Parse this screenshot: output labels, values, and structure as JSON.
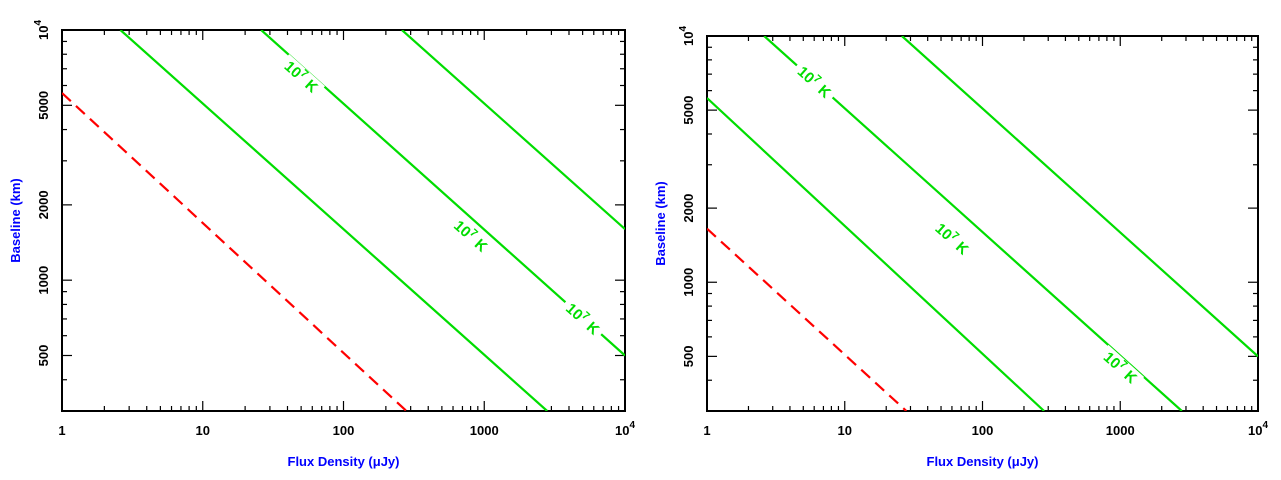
{
  "colors": {
    "axis_title": "#0000ff",
    "contour": "#00dd00",
    "limit": "#ff0000",
    "frame": "#000000"
  },
  "chart_data": [
    {
      "type": "line",
      "title": "",
      "xlabel": "Flux Density (μJy)",
      "ylabel": "Baseline (km)",
      "x_scale": "log",
      "y_scale": "log",
      "xlim": [
        1,
        10000
      ],
      "ylim": [
        300,
        10000
      ],
      "x_ticks": [
        {
          "value": 1,
          "base": "1",
          "exp": ""
        },
        {
          "value": 10,
          "base": "10",
          "exp": ""
        },
        {
          "value": 100,
          "base": "100",
          "exp": ""
        },
        {
          "value": 1000,
          "base": "1000",
          "exp": ""
        },
        {
          "value": 10000,
          "base": "10",
          "exp": "4"
        }
      ],
      "y_ticks": [
        {
          "value": 500,
          "base": "500",
          "exp": ""
        },
        {
          "value": 1000,
          "base": "1000",
          "exp": ""
        },
        {
          "value": 2000,
          "base": "2000",
          "exp": ""
        },
        {
          "value": 5000,
          "base": "5000",
          "exp": ""
        },
        {
          "value": 10000,
          "base": "10",
          "exp": "4"
        }
      ],
      "series": [
        {
          "style": "solid",
          "color": "#00dd00",
          "points": [
            [
              2.6,
              10000
            ],
            [
              2800,
              300
            ]
          ]
        },
        {
          "style": "solid",
          "color": "#00dd00",
          "points": [
            [
              26,
              10000
            ],
            [
              10000,
              500
            ]
          ]
        },
        {
          "style": "solid",
          "color": "#00dd00",
          "points": [
            [
              260,
              10000
            ],
            [
              10000,
              1600
            ]
          ]
        },
        {
          "style": "dashed",
          "color": "#ff0000",
          "points": [
            [
              1,
              5600
            ],
            [
              280,
              300
            ]
          ]
        }
      ],
      "annotations": [
        {
          "text_base": "10",
          "text_exp": "7",
          "text_unit": "K",
          "x": 50,
          "y": 6500,
          "series": 1
        },
        {
          "text_base": "10",
          "text_exp": "7",
          "text_unit": "K",
          "x": 800,
          "y": 1500,
          "series": 1
        },
        {
          "text_base": "10",
          "text_exp": "7",
          "text_unit": "K",
          "x": 5000,
          "y": 700,
          "series": 1
        }
      ]
    },
    {
      "type": "line",
      "title": "",
      "xlabel": "Flux Density (μJy)",
      "ylabel": "Baseline (km)",
      "x_scale": "log",
      "y_scale": "log",
      "xlim": [
        1,
        10000
      ],
      "ylim": [
        300,
        10000
      ],
      "x_ticks": [
        {
          "value": 1,
          "base": "1",
          "exp": ""
        },
        {
          "value": 10,
          "base": "10",
          "exp": ""
        },
        {
          "value": 100,
          "base": "100",
          "exp": ""
        },
        {
          "value": 1000,
          "base": "1000",
          "exp": ""
        },
        {
          "value": 10000,
          "base": "10",
          "exp": "4"
        }
      ],
      "y_ticks": [
        {
          "value": 500,
          "base": "500",
          "exp": ""
        },
        {
          "value": 1000,
          "base": "1000",
          "exp": ""
        },
        {
          "value": 2000,
          "base": "2000",
          "exp": ""
        },
        {
          "value": 5000,
          "base": "5000",
          "exp": ""
        },
        {
          "value": 10000,
          "base": "10",
          "exp": "4"
        }
      ],
      "series": [
        {
          "style": "solid",
          "color": "#00dd00",
          "points": [
            [
              1,
              5600
            ],
            [
              280,
              300
            ]
          ]
        },
        {
          "style": "solid",
          "color": "#00dd00",
          "points": [
            [
              2.6,
              10000
            ],
            [
              2800,
              300
            ]
          ]
        },
        {
          "style": "solid",
          "color": "#00dd00",
          "points": [
            [
              26,
              10000
            ],
            [
              10000,
              500
            ]
          ]
        },
        {
          "style": "dashed",
          "color": "#ff0000",
          "points": [
            [
              1,
              1650
            ],
            [
              28,
              300
            ]
          ]
        }
      ],
      "annotations": [
        {
          "text_base": "10",
          "text_exp": "7",
          "text_unit": "K",
          "x": 6,
          "y": 6500,
          "series": 1
        },
        {
          "text_base": "10",
          "text_exp": "7",
          "text_unit": "K",
          "x": 60,
          "y": 1500,
          "series": 1
        },
        {
          "text_base": "10",
          "text_exp": "7",
          "text_unit": "K",
          "x": 1000,
          "y": 450,
          "series": 1
        }
      ]
    }
  ]
}
